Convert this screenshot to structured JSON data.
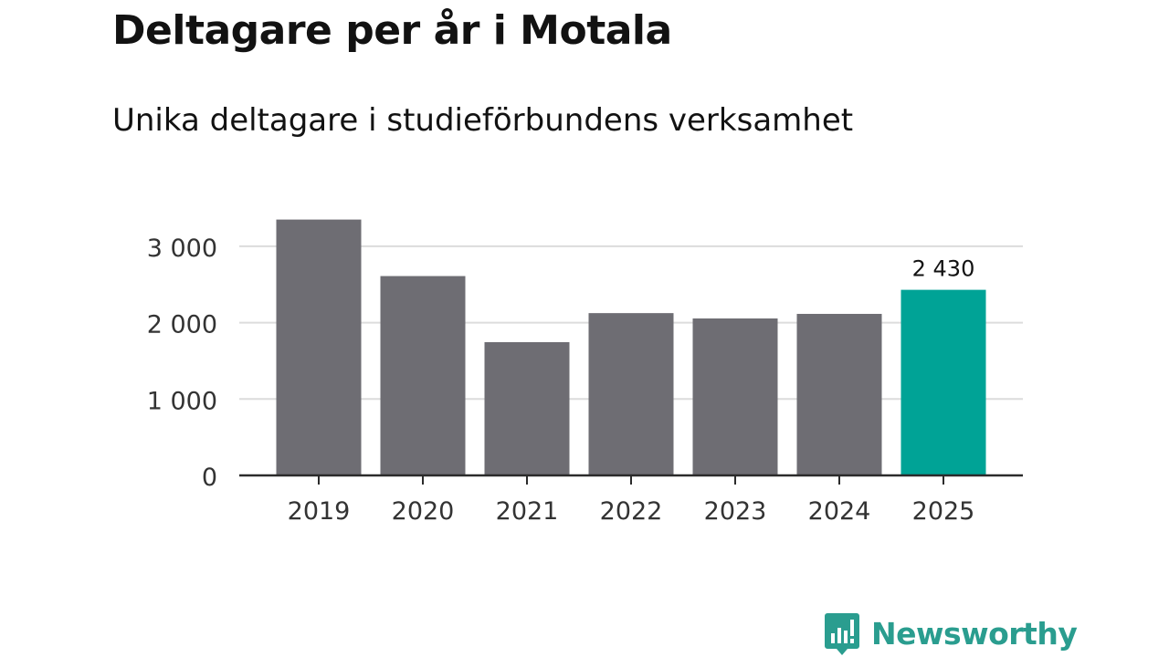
{
  "chart_data": {
    "type": "bar",
    "title": "Deltagare per år i Motala",
    "subtitle": "Unika deltagare i studieförbundens verksamhet",
    "categories": [
      "2019",
      "2020",
      "2021",
      "2022",
      "2023",
      "2024",
      "2025"
    ],
    "values": [
      3350,
      2610,
      1745,
      2125,
      2055,
      2115,
      2430
    ],
    "highlight_index": 6,
    "data_labels": [
      {
        "index": 6,
        "text": "2 430"
      }
    ],
    "y_ticks": [
      0,
      1000,
      2000,
      3000
    ],
    "y_tick_labels": [
      "0",
      "1 000",
      "2 000",
      "3 000"
    ],
    "ylim": [
      0,
      3500
    ],
    "grid": true,
    "xlabel": "",
    "ylabel": ""
  },
  "colors": {
    "bar": "#6e6d73",
    "highlight": "#00a396",
    "grid": "#dcdcdc",
    "axis": "#2b2b2b",
    "text": "#121212",
    "brand": "#2a9d8f"
  },
  "branding": {
    "logo_text": "Newsworthy",
    "logo_icon": "bar-chart-speech-bubble-icon"
  }
}
